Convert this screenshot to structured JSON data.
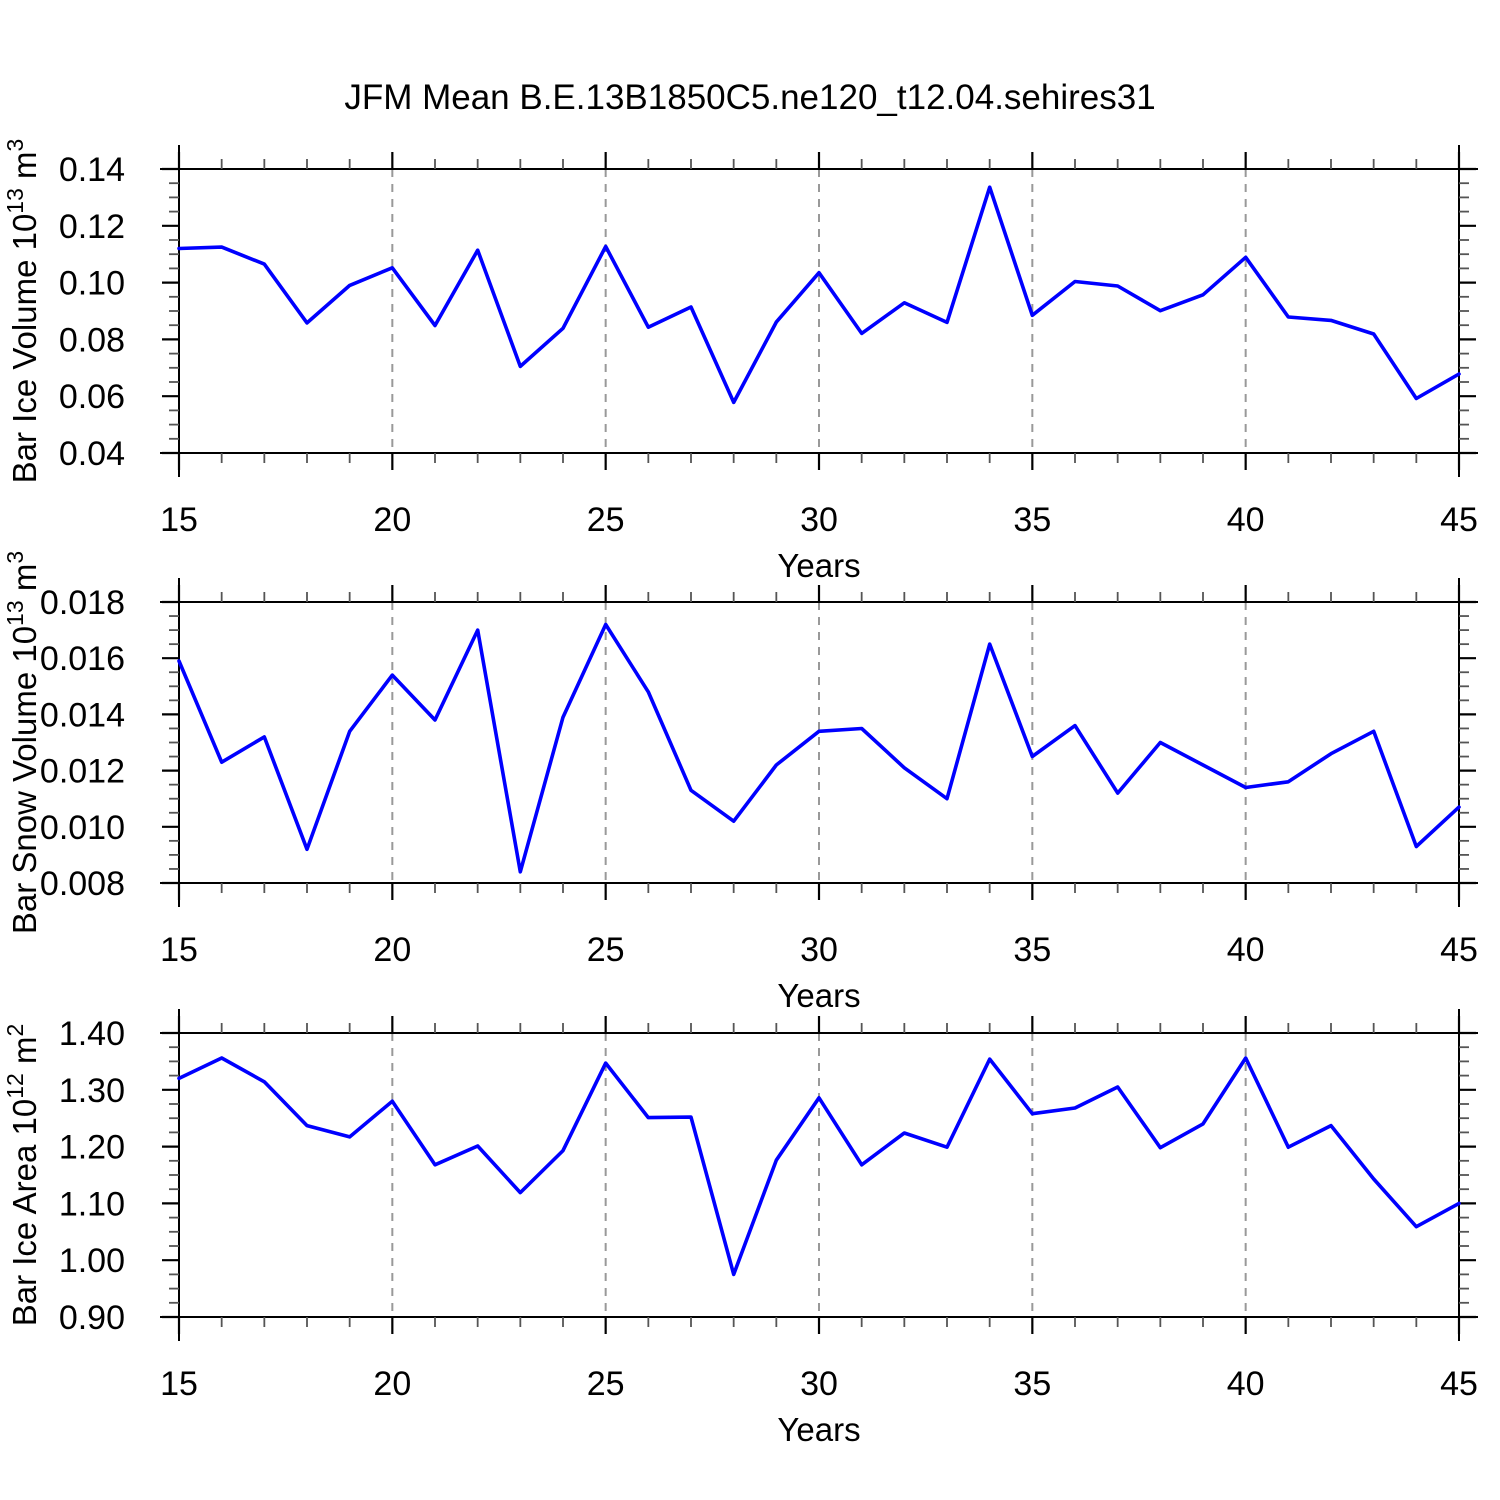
{
  "title": "JFM Mean B.E.13B1850C5.ne120_t12.04.sehires31",
  "xlabel": "Years",
  "colors": {
    "line": "#0000ff",
    "grid": "#999999",
    "axis": "#000000",
    "background": "#ffffff"
  },
  "x_axis": {
    "range": [
      15,
      45
    ],
    "ticks": [
      15,
      20,
      25,
      30,
      35,
      40,
      45
    ],
    "tick_labels": [
      "15",
      "20",
      "25",
      "30",
      "35",
      "40",
      "45"
    ],
    "minor_step": 1,
    "grid_years": [
      20,
      25,
      30,
      35,
      40
    ]
  },
  "chart_data": [
    {
      "type": "line",
      "name": "ice-volume",
      "ylabel": "Bar Ice Volume 10^13 m^3",
      "ylabel_parts": [
        [
          "Bar Ice Volume 10",
          false
        ],
        [
          "13",
          true
        ],
        [
          " m",
          false
        ],
        [
          "3",
          true
        ]
      ],
      "xlabel": "Years",
      "ylim": [
        0.04,
        0.14
      ],
      "yticks": [
        0.04,
        0.06,
        0.08,
        0.1,
        0.12,
        0.14
      ],
      "ytick_labels": [
        "0.04",
        "0.06",
        "0.08",
        "0.10",
        "0.12",
        "0.14"
      ],
      "yminor_step": 0.005,
      "x": [
        15,
        16,
        17,
        18,
        19,
        20,
        21,
        22,
        23,
        24,
        25,
        26,
        27,
        28,
        29,
        30,
        31,
        32,
        33,
        34,
        35,
        36,
        37,
        38,
        39,
        40,
        41,
        42,
        43,
        44,
        45
      ],
      "values": [
        0.112,
        0.1125,
        0.1065,
        0.0858,
        0.099,
        0.1052,
        0.0849,
        0.1114,
        0.0705,
        0.0839,
        0.1127,
        0.0843,
        0.0914,
        0.0578,
        0.0861,
        0.1035,
        0.0821,
        0.0929,
        0.086,
        0.1336,
        0.0885,
        0.1004,
        0.0988,
        0.0901,
        0.0957,
        0.1089,
        0.0879,
        0.0867,
        0.0819,
        0.0592,
        0.0678
      ]
    },
    {
      "type": "line",
      "name": "snow-volume",
      "ylabel": "Bar Snow Volume 10^13 m^3",
      "ylabel_parts": [
        [
          "Bar Snow Volume 10",
          false
        ],
        [
          "13",
          true
        ],
        [
          " m",
          false
        ],
        [
          "3",
          true
        ]
      ],
      "xlabel": "Years",
      "ylim": [
        0.008,
        0.018
      ],
      "yticks": [
        0.008,
        0.01,
        0.012,
        0.014,
        0.016,
        0.018
      ],
      "ytick_labels": [
        "0.008",
        "0.010",
        "0.012",
        "0.014",
        "0.016",
        "0.018"
      ],
      "yminor_step": 0.0005,
      "x": [
        15,
        16,
        17,
        18,
        19,
        20,
        21,
        22,
        23,
        24,
        25,
        26,
        27,
        28,
        29,
        30,
        31,
        32,
        33,
        34,
        35,
        36,
        37,
        38,
        39,
        40,
        41,
        42,
        43,
        44,
        45
      ],
      "values": [
        0.0159,
        0.0123,
        0.0132,
        0.0092,
        0.0134,
        0.0154,
        0.0138,
        0.017,
        0.0084,
        0.0139,
        0.0172,
        0.0148,
        0.0113,
        0.0102,
        0.0122,
        0.0134,
        0.0135,
        0.0121,
        0.011,
        0.0165,
        0.0125,
        0.0136,
        0.0112,
        0.013,
        0.0122,
        0.0114,
        0.0116,
        0.0126,
        0.0134,
        0.0093,
        0.0107
      ]
    },
    {
      "type": "line",
      "name": "ice-area",
      "ylabel": "Bar Ice Area 10^12 m^2",
      "ylabel_parts": [
        [
          "Bar Ice Area 10",
          false
        ],
        [
          "12",
          true
        ],
        [
          " m",
          false
        ],
        [
          "2",
          true
        ]
      ],
      "xlabel": "Years",
      "ylim": [
        0.9,
        1.4
      ],
      "yticks": [
        0.9,
        1.0,
        1.1,
        1.2,
        1.3,
        1.4
      ],
      "ytick_labels": [
        "0.90",
        "1.00",
        "1.10",
        "1.20",
        "1.30",
        "1.40"
      ],
      "yminor_step": 0.025,
      "x": [
        15,
        16,
        17,
        18,
        19,
        20,
        21,
        22,
        23,
        24,
        25,
        26,
        27,
        28,
        29,
        30,
        31,
        32,
        33,
        34,
        35,
        36,
        37,
        38,
        39,
        40,
        41,
        42,
        43,
        44,
        45
      ],
      "values": [
        1.32,
        1.356,
        1.314,
        1.237,
        1.217,
        1.28,
        1.168,
        1.201,
        1.119,
        1.193,
        1.347,
        1.251,
        1.252,
        0.975,
        1.176,
        1.286,
        1.168,
        1.224,
        1.199,
        1.354,
        1.258,
        1.268,
        1.305,
        1.198,
        1.24,
        1.356,
        1.199,
        1.237,
        1.143,
        1.059,
        1.1
      ]
    }
  ]
}
